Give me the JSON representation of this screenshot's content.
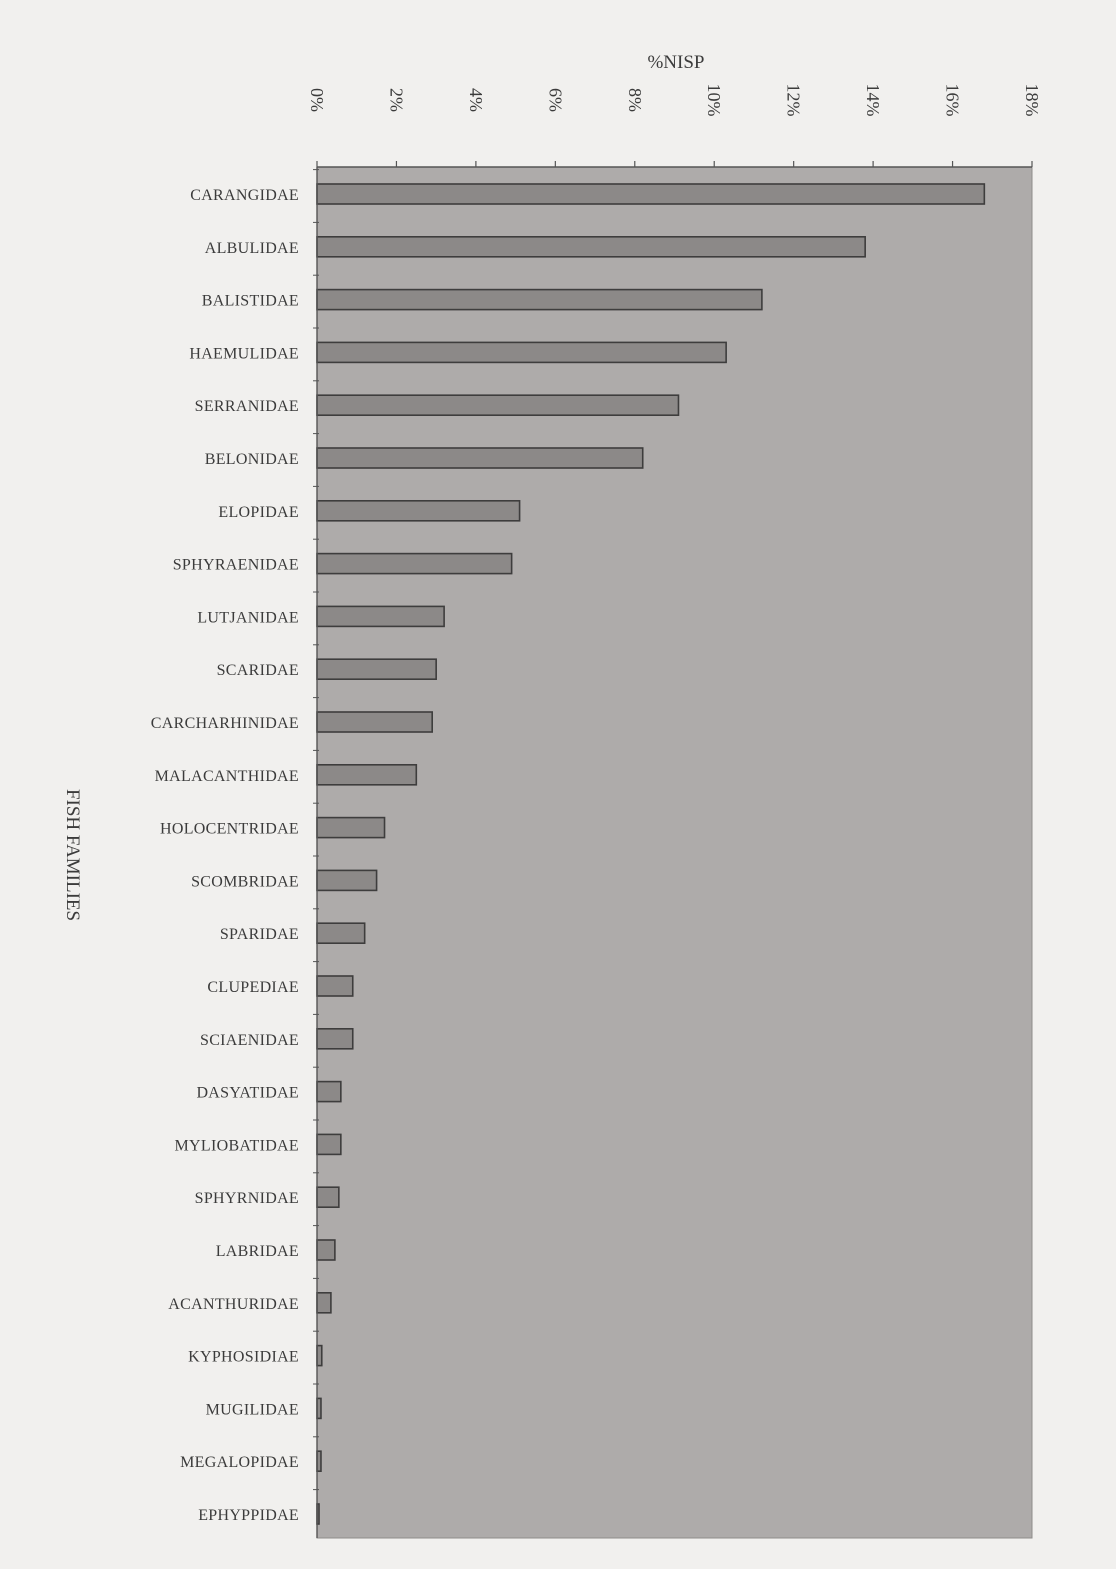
{
  "chart_data": {
    "type": "bar",
    "orientation": "horizontal",
    "title": "%NISP",
    "xlabel": "%NISP",
    "ylabel": "FISH FAMILIES",
    "xlim": [
      0,
      18
    ],
    "x_ticks": [
      "0%",
      "2%",
      "4%",
      "6%",
      "8%",
      "10%",
      "12%",
      "14%",
      "16%",
      "18%"
    ],
    "categories": [
      "CARANGIDAE",
      "ALBULIDAE",
      "BALISTIDAE",
      "HAEMULIDAE",
      "SERRANIDAE",
      "BELONIDAE",
      "ELOPIDAE",
      "SPHYRAENIDAE",
      "LUTJANIDAE",
      "SCARIDAE",
      "CARCHARHINIDAE",
      "MALACANTHIDAE",
      "HOLOCENTRIDAE",
      "SCOMBRIDAE",
      "SPARIDAE",
      "CLUPEDIAE",
      "SCIAENIDAE",
      "DASYATIDAE",
      "MYLIOBATIDAE",
      "SPHYRNIDAE",
      "LABRIDAE",
      "ACANTHURIDAE",
      "KYPHOSIDIAE",
      "MUGILIDAE",
      "MEGALOPIDAE",
      "EPHYPPIDAE"
    ],
    "values": [
      16.8,
      13.8,
      11.2,
      10.3,
      9.1,
      8.2,
      5.1,
      4.9,
      3.2,
      3.0,
      2.9,
      2.5,
      1.7,
      1.5,
      1.2,
      0.9,
      0.9,
      0.6,
      0.6,
      0.55,
      0.45,
      0.35,
      0.12,
      0.1,
      0.1,
      0.05
    ],
    "grid": false,
    "legend": "none",
    "colors": {
      "plot_background": "#aeabaa",
      "bar_fill": "#8c8988",
      "bar_stroke": "#3e3d3d",
      "axis": "#555555"
    }
  }
}
